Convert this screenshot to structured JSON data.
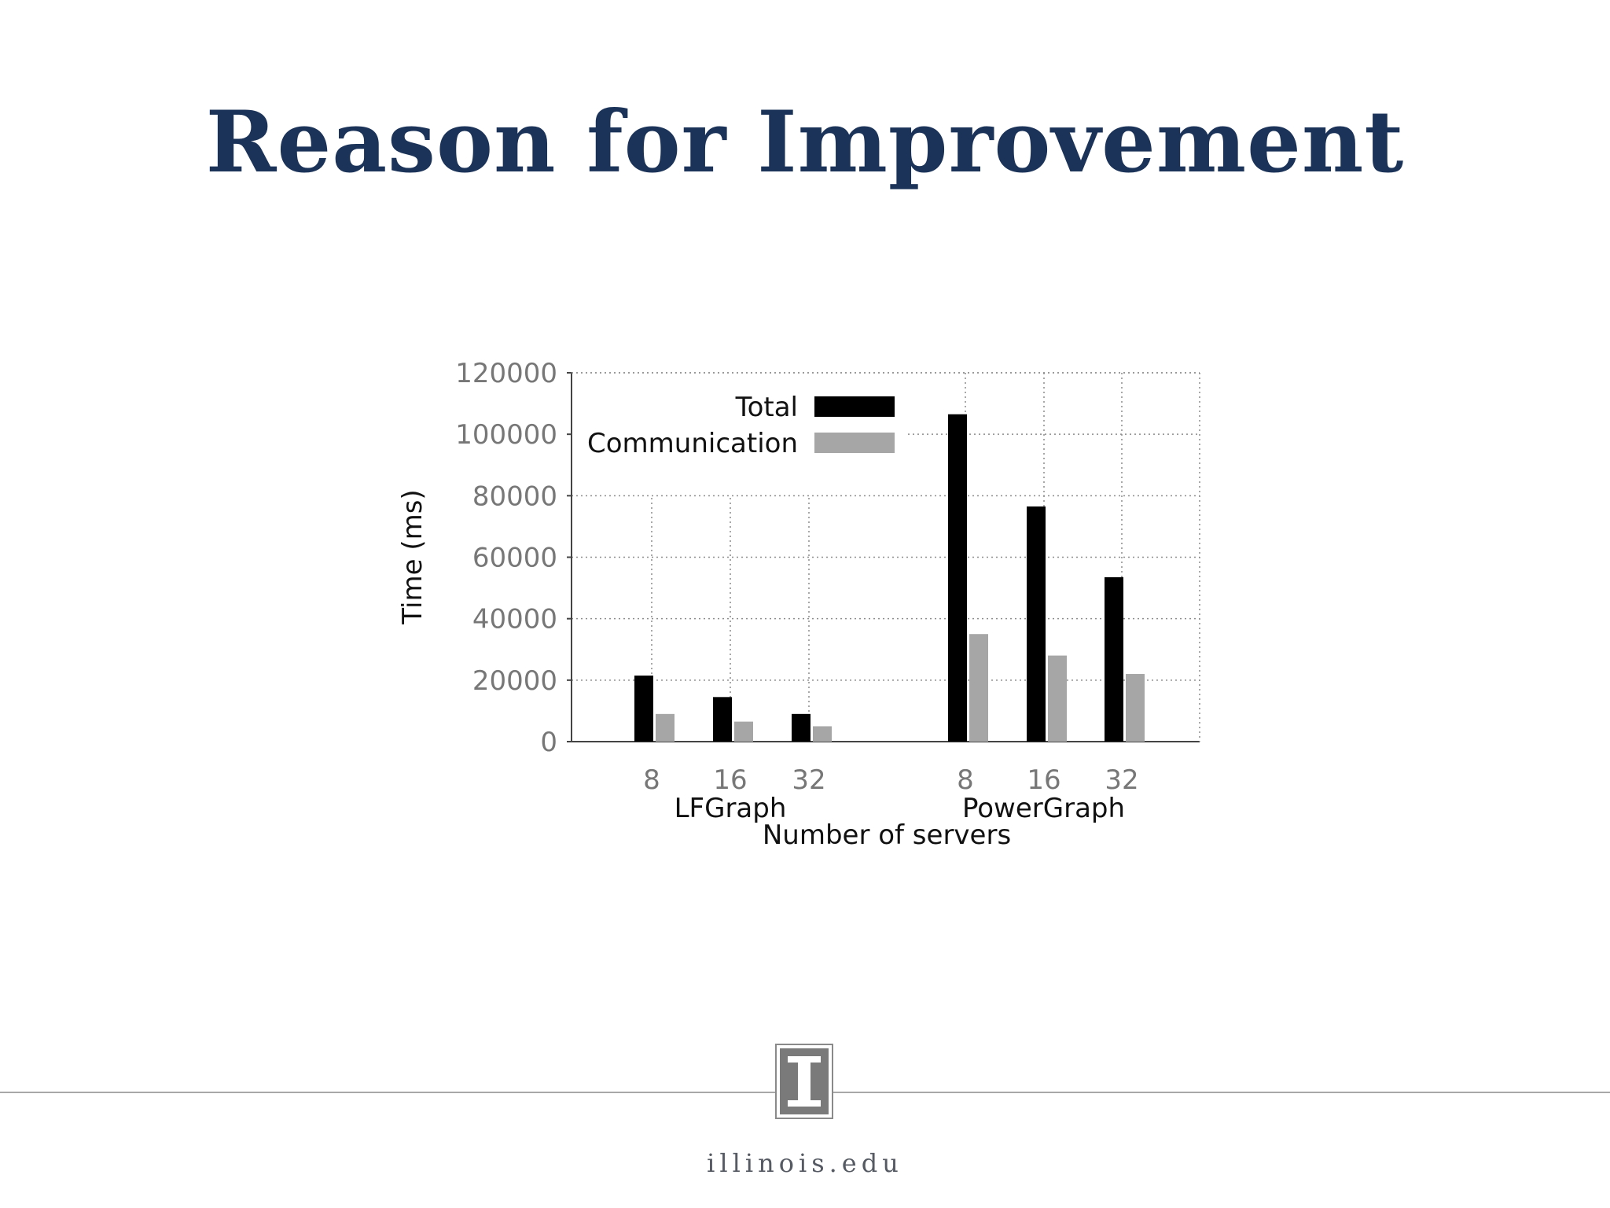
{
  "slide": {
    "title": "Reason for Improvement",
    "footer_url": "illinois.edu",
    "logo_letter": "I"
  },
  "colors": {
    "title": "#1b3358",
    "total": "#000000",
    "communication": "#a6a6a6",
    "tick_text": "#777777"
  },
  "chart_data": {
    "type": "bar",
    "ylabel": "Time (ms)",
    "xlabel": "Number of servers",
    "ylim": [
      0,
      120000
    ],
    "yticks": [
      0,
      20000,
      40000,
      60000,
      80000,
      100000,
      120000
    ],
    "grid": true,
    "legend": "top-left",
    "groups": [
      {
        "label": "LFGraph",
        "categories": [
          "8",
          "16",
          "32"
        ]
      },
      {
        "label": "PowerGraph",
        "categories": [
          "8",
          "16",
          "32"
        ]
      }
    ],
    "series": [
      {
        "name": "Total",
        "values": [
          21500,
          14500,
          9000,
          106500,
          76500,
          53500
        ]
      },
      {
        "name": "Communication",
        "values": [
          9000,
          6500,
          5000,
          35000,
          28000,
          22000
        ]
      }
    ]
  }
}
